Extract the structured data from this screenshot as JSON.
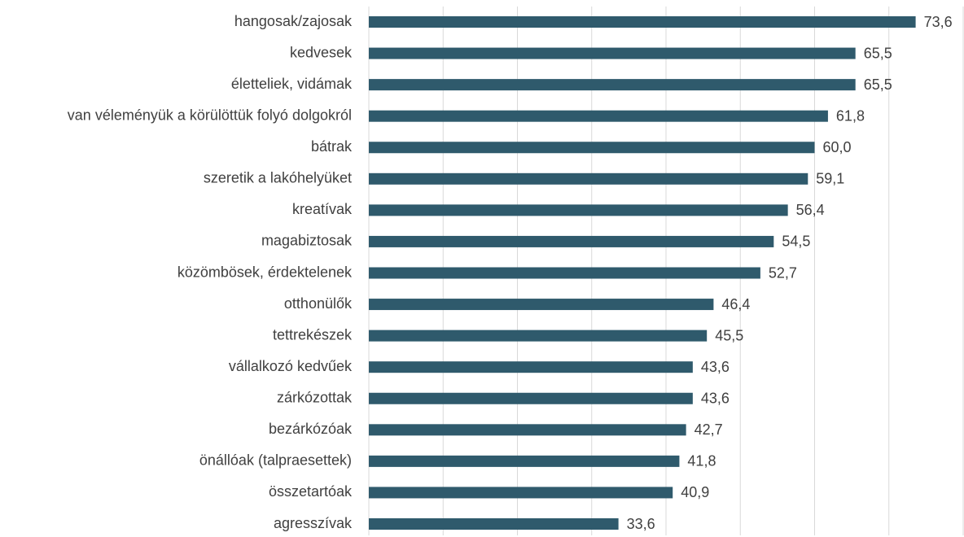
{
  "chart_data": {
    "type": "barh",
    "categories": [
      "hangosak/zajosak",
      "kedvesek",
      "életteliek, vidámak",
      "van véleményük a körülöttük folyó dolgokról",
      "bátrak",
      "szeretik a lakóhelyüket",
      "kreatívak",
      "magabiztosak",
      "közömbösek, érdektelenek",
      "otthonülők",
      "tettrekészek",
      "vállalkozó kedvűek",
      "zárkózottak",
      "bezárkózóak",
      "önállóak (talpraesettek)",
      "összetartóak",
      "agresszívak"
    ],
    "values": [
      73.6,
      65.5,
      65.5,
      61.8,
      60.0,
      59.1,
      56.4,
      54.5,
      52.7,
      46.4,
      45.5,
      43.6,
      43.6,
      42.7,
      41.8,
      40.9,
      33.6
    ],
    "value_labels": [
      "73,6",
      "65,5",
      "65,5",
      "61,8",
      "60,0",
      "59,1",
      "56,4",
      "54,5",
      "52,7",
      "46,4",
      "45,5",
      "43,6",
      "43,6",
      "42,7",
      "41,8",
      "40,9",
      "33,6"
    ],
    "color": "#2f5a6c",
    "xlim": [
      0,
      80
    ],
    "xticks": [
      0,
      10,
      20,
      30,
      40,
      50,
      60,
      70,
      80
    ],
    "grid": true
  }
}
